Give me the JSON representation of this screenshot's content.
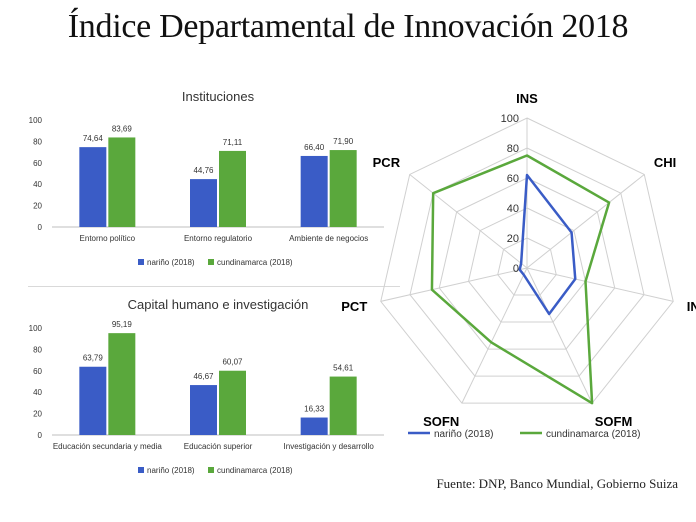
{
  "page": {
    "title": "Índice Departamental de Innovación 2018",
    "source": "Fuente: DNP, Banco Mundial, Gobierno Suiza"
  },
  "colors": {
    "narino": "#3a5cc6",
    "cundinamarca": "#5aa83c"
  },
  "chart_data": [
    {
      "type": "bar",
      "title": "Instituciones",
      "categories": [
        "Entorno político",
        "Entorno regulatorio",
        "Ambiente de negocios"
      ],
      "series": [
        {
          "name": "nariño (2018)",
          "values": [
            74.64,
            44.76,
            66.4
          ],
          "labels": [
            "74,64",
            "44,76",
            "66,40"
          ]
        },
        {
          "name": "cundinamarca (2018)",
          "values": [
            83.69,
            71.11,
            71.9
          ],
          "labels": [
            "83,69",
            "71,11",
            "71,90"
          ]
        }
      ],
      "yticks": [
        "0",
        "20",
        "40",
        "60",
        "80",
        "100"
      ],
      "ylim": [
        0,
        100
      ],
      "grid": false,
      "legend_position": "bottom"
    },
    {
      "type": "bar",
      "title": "Capital humano e investigación",
      "categories": [
        "Educación secundaria y media",
        "Educación superior",
        "Investigación y desarrollo"
      ],
      "series": [
        {
          "name": "nariño (2018)",
          "values": [
            63.79,
            46.67,
            16.33
          ],
          "labels": [
            "63,79",
            "46,67",
            "16,33"
          ]
        },
        {
          "name": "cundinamarca (2018)",
          "values": [
            95.19,
            60.07,
            54.61
          ],
          "labels": [
            "95,19",
            "60,07",
            "54,61"
          ]
        }
      ],
      "yticks": [
        "0",
        "20",
        "40",
        "60",
        "80",
        "100"
      ],
      "ylim": [
        0,
        100
      ],
      "grid": false,
      "legend_position": "bottom"
    },
    {
      "type": "radar",
      "axes": [
        "INS",
        "CHI",
        "INF",
        "SOFM",
        "SOFN",
        "PCT",
        "PCR"
      ],
      "series": [
        {
          "name": "nariño (2018)",
          "values": [
            62,
            38,
            33,
            34,
            5,
            5,
            5
          ]
        },
        {
          "name": "cundinamarca (2018)",
          "values": [
            75,
            70,
            40,
            100,
            55,
            65,
            80
          ]
        }
      ],
      "rticks": [
        "0",
        "20",
        "40",
        "60",
        "80",
        "100"
      ],
      "rlim": [
        0,
        100
      ],
      "grid": true,
      "legend_position": "bottom"
    }
  ]
}
